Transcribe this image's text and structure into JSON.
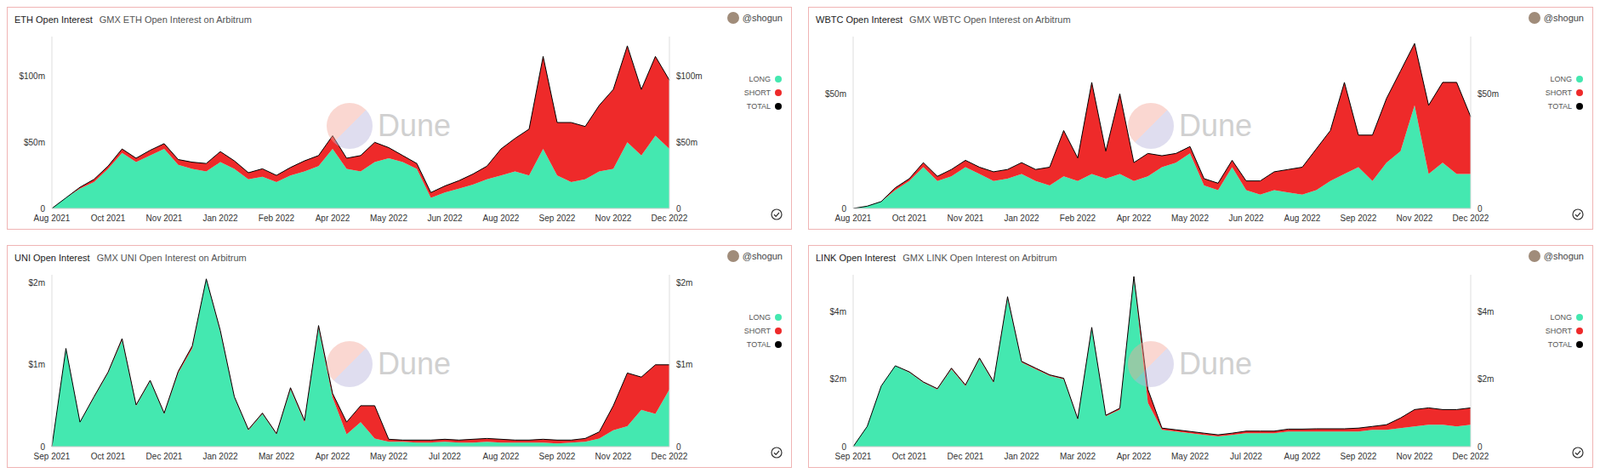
{
  "chart_data": [
    {
      "type": "area",
      "title": "ETH Open Interest",
      "subtitle": "GMX ETH Open Interest on Arbitrum",
      "author": "@shogun",
      "watermark": "Dune",
      "stacked": true,
      "grid": false,
      "legend": "right",
      "categories": [
        "Aug 2021",
        null,
        null,
        null,
        "Oct 2021",
        null,
        null,
        null,
        "Nov 2021",
        null,
        null,
        null,
        "Jan 2022",
        null,
        null,
        null,
        "Feb 2022",
        null,
        null,
        null,
        "Apr 2022",
        null,
        null,
        null,
        "May 2022",
        null,
        null,
        null,
        "Jun 2022",
        null,
        null,
        null,
        "Aug 2022",
        null,
        null,
        null,
        "Sep 2022",
        null,
        null,
        null,
        "Nov 2022",
        null,
        null,
        null,
        "Dec 2022"
      ],
      "series": [
        {
          "name": "LONG",
          "color": "#44e8b0",
          "values": [
            0,
            8000000,
            15000000,
            20000000,
            30000000,
            42000000,
            35000000,
            40000000,
            45000000,
            33000000,
            30000000,
            28000000,
            35000000,
            30000000,
            22000000,
            24000000,
            20000000,
            25000000,
            28000000,
            32000000,
            45000000,
            30000000,
            28000000,
            35000000,
            38000000,
            35000000,
            30000000,
            8000000,
            12000000,
            15000000,
            18000000,
            22000000,
            25000000,
            28000000,
            25000000,
            45000000,
            25000000,
            20000000,
            22000000,
            28000000,
            30000000,
            50000000,
            40000000,
            55000000,
            45000000
          ]
        },
        {
          "name": "SHORT",
          "color": "#ee2a2a",
          "values": [
            0,
            0,
            1000000,
            2000000,
            2000000,
            3000000,
            3000000,
            4000000,
            4000000,
            4000000,
            5000000,
            6000000,
            8000000,
            6000000,
            5000000,
            6000000,
            5000000,
            6000000,
            8000000,
            8000000,
            10000000,
            8000000,
            12000000,
            15000000,
            8000000,
            5000000,
            4000000,
            4000000,
            5000000,
            6000000,
            8000000,
            10000000,
            20000000,
            25000000,
            35000000,
            70000000,
            40000000,
            45000000,
            40000000,
            50000000,
            60000000,
            73000000,
            50000000,
            60000000,
            52000000
          ]
        },
        {
          "name": "TOTAL",
          "color": "#000000",
          "type": "line",
          "values": [
            0,
            8000000,
            16000000,
            22000000,
            32000000,
            45000000,
            38000000,
            44000000,
            49000000,
            37000000,
            35000000,
            34000000,
            43000000,
            36000000,
            27000000,
            30000000,
            25000000,
            31000000,
            36000000,
            40000000,
            55000000,
            38000000,
            40000000,
            50000000,
            46000000,
            40000000,
            34000000,
            12000000,
            17000000,
            21000000,
            26000000,
            32000000,
            45000000,
            53000000,
            60000000,
            115000000,
            65000000,
            65000000,
            62000000,
            78000000,
            90000000,
            123000000,
            90000000,
            115000000,
            97000000
          ]
        }
      ],
      "ylim": [
        0,
        130000000
      ],
      "yticks": [
        0,
        {
          "value": 50000000,
          "label": "$50m"
        },
        {
          "value": 100000000,
          "label": "$100m"
        }
      ],
      "y2lim": [
        0,
        130000000
      ],
      "y2ticks": [
        0,
        {
          "value": 50000000,
          "label": "$50m"
        },
        {
          "value": 100000000,
          "label": "$100m"
        }
      ]
    },
    {
      "type": "area",
      "title": "WBTC Open Interest",
      "subtitle": "GMX WBTC Open Interest on Arbitrum",
      "author": "@shogun",
      "watermark": "Dune",
      "stacked": true,
      "grid": false,
      "legend": "right",
      "categories": [
        "Aug 2021",
        null,
        null,
        null,
        "Oct 2021",
        null,
        null,
        null,
        "Nov 2021",
        null,
        null,
        null,
        "Jan 2022",
        null,
        null,
        null,
        "Feb 2022",
        null,
        null,
        null,
        "Apr 2022",
        null,
        null,
        null,
        "May 2022",
        null,
        null,
        null,
        "Jun 2022",
        null,
        null,
        null,
        "Aug 2022",
        null,
        null,
        null,
        "Sep 2022",
        null,
        null,
        null,
        "Nov 2022",
        null,
        null,
        null,
        "Dec 2022"
      ],
      "series": [
        {
          "name": "LONG",
          "color": "#44e8b0",
          "values": [
            0,
            1000000,
            3000000,
            8000000,
            12000000,
            18000000,
            12000000,
            14000000,
            18000000,
            15000000,
            12000000,
            13000000,
            15000000,
            12000000,
            10000000,
            14000000,
            12000000,
            15000000,
            13000000,
            15000000,
            12000000,
            14000000,
            18000000,
            20000000,
            24000000,
            10000000,
            8000000,
            18000000,
            8000000,
            6000000,
            8000000,
            7000000,
            6000000,
            8000000,
            12000000,
            15000000,
            18000000,
            12000000,
            20000000,
            25000000,
            45000000,
            15000000,
            20000000,
            15000000,
            15000000
          ]
        },
        {
          "name": "SHORT",
          "color": "#ee2a2a",
          "values": [
            0,
            0,
            0,
            1000000,
            1000000,
            2000000,
            2000000,
            3000000,
            3000000,
            3000000,
            4000000,
            4000000,
            5000000,
            5000000,
            8000000,
            20000000,
            10000000,
            40000000,
            12000000,
            35000000,
            8000000,
            10000000,
            5000000,
            4000000,
            3000000,
            3000000,
            3000000,
            3000000,
            4000000,
            6000000,
            8000000,
            10000000,
            12000000,
            18000000,
            22000000,
            40000000,
            14000000,
            20000000,
            28000000,
            35000000,
            27000000,
            30000000,
            35000000,
            40000000,
            25000000
          ]
        },
        {
          "name": "TOTAL",
          "color": "#000000",
          "type": "line",
          "values": [
            0,
            1000000,
            3000000,
            9000000,
            13000000,
            20000000,
            14000000,
            17000000,
            21000000,
            18000000,
            16000000,
            17000000,
            20000000,
            17000000,
            18000000,
            34000000,
            22000000,
            55000000,
            25000000,
            50000000,
            20000000,
            24000000,
            23000000,
            24000000,
            27000000,
            13000000,
            11000000,
            21000000,
            12000000,
            12000000,
            16000000,
            17000000,
            18000000,
            26000000,
            34000000,
            55000000,
            32000000,
            32000000,
            48000000,
            60000000,
            72000000,
            45000000,
            55000000,
            55000000,
            40000000
          ]
        }
      ],
      "ylim": [
        0,
        75000000
      ],
      "yticks": [
        0,
        {
          "value": 50000000,
          "label": "$50m"
        }
      ],
      "y2lim": [
        0,
        75000000
      ],
      "y2ticks": [
        0,
        {
          "value": 50000000,
          "label": "$50m"
        }
      ]
    },
    {
      "type": "area",
      "title": "UNI Open Interest",
      "subtitle": "GMX UNI Open Interest on Arbitrum",
      "author": "@shogun",
      "watermark": "Dune",
      "stacked": true,
      "grid": false,
      "legend": "right",
      "categories": [
        "Sep 2021",
        null,
        null,
        null,
        "Oct 2021",
        null,
        null,
        null,
        "Dec 2021",
        null,
        null,
        null,
        "Jan 2022",
        null,
        null,
        null,
        "Mar 2022",
        null,
        null,
        null,
        "Apr 2022",
        null,
        null,
        null,
        "May 2022",
        null,
        null,
        null,
        "Jul 2022",
        null,
        null,
        null,
        "Aug 2022",
        null,
        null,
        null,
        "Sep 2022",
        null,
        null,
        null,
        "Nov 2022",
        null,
        null,
        null,
        "Dec 2022"
      ],
      "series": [
        {
          "name": "LONG",
          "color": "#44e8b0",
          "values": [
            0,
            1200000,
            300000,
            600000,
            900000,
            1300000,
            500000,
            800000,
            400000,
            900000,
            1200000,
            2050000,
            1400000,
            600000,
            200000,
            400000,
            150000,
            700000,
            300000,
            1450000,
            600000,
            150000,
            300000,
            100000,
            60000,
            60000,
            50000,
            50000,
            60000,
            50000,
            50000,
            60000,
            50000,
            50000,
            50000,
            50000,
            40000,
            50000,
            60000,
            100000,
            200000,
            250000,
            450000,
            400000,
            700000
          ]
        },
        {
          "name": "SHORT",
          "color": "#ee2a2a",
          "values": [
            0,
            0,
            0,
            10000,
            10000,
            20000,
            10000,
            10000,
            10000,
            20000,
            30000,
            0,
            20000,
            10000,
            10000,
            10000,
            10000,
            20000,
            20000,
            30000,
            50000,
            150000,
            200000,
            400000,
            30000,
            20000,
            30000,
            30000,
            30000,
            30000,
            40000,
            40000,
            40000,
            30000,
            30000,
            40000,
            40000,
            30000,
            40000,
            80000,
            300000,
            650000,
            400000,
            600000,
            300000
          ]
        },
        {
          "name": "TOTAL",
          "color": "#000000",
          "type": "line",
          "values": [
            0,
            1200000,
            300000,
            610000,
            910000,
            1320000,
            510000,
            810000,
            410000,
            920000,
            1230000,
            2050000,
            1420000,
            610000,
            210000,
            410000,
            160000,
            720000,
            320000,
            1480000,
            650000,
            300000,
            500000,
            500000,
            90000,
            80000,
            80000,
            80000,
            90000,
            80000,
            90000,
            100000,
            90000,
            80000,
            80000,
            90000,
            80000,
            80000,
            100000,
            180000,
            500000,
            900000,
            850000,
            1000000,
            1000000
          ]
        }
      ],
      "ylim": [
        0,
        2100000
      ],
      "yticks": [
        0,
        {
          "value": 1000000,
          "label": "$1m"
        },
        {
          "value": 2000000,
          "label": "$2m"
        }
      ],
      "y2lim": [
        0,
        2100000
      ],
      "y2ticks": [
        0,
        {
          "value": 1000000,
          "label": "$1m"
        },
        {
          "value": 2000000,
          "label": "$2m"
        }
      ]
    },
    {
      "type": "area",
      "title": "LINK Open Interest",
      "subtitle": "GMX LINK Open Interest on Arbitrum",
      "author": "@shogun",
      "watermark": "Dune",
      "stacked": true,
      "grid": false,
      "legend": "right",
      "categories": [
        "Sep 2021",
        null,
        null,
        null,
        "Oct 2021",
        null,
        null,
        null,
        "Dec 2021",
        null,
        null,
        null,
        "Jan 2022",
        null,
        null,
        null,
        "Mar 2022",
        null,
        null,
        null,
        "Apr 2022",
        null,
        null,
        null,
        "May 2022",
        null,
        null,
        null,
        "Jul 2022",
        null,
        null,
        null,
        "Aug 2022",
        null,
        null,
        null,
        "Sep 2022",
        null,
        null,
        null,
        "Nov 2022",
        null,
        null,
        null,
        "Dec 2022"
      ],
      "series": [
        {
          "name": "LONG",
          "color": "#44e8b0",
          "values": [
            0,
            600000,
            1800000,
            2400000,
            2200000,
            1900000,
            1700000,
            2300000,
            1800000,
            2600000,
            1900000,
            4400000,
            2500000,
            2300000,
            2100000,
            2000000,
            800000,
            3500000,
            900000,
            1100000,
            5000000,
            1300000,
            500000,
            450000,
            400000,
            350000,
            300000,
            350000,
            400000,
            400000,
            400000,
            450000,
            450000,
            450000,
            450000,
            450000,
            450000,
            500000,
            500000,
            550000,
            600000,
            650000,
            650000,
            600000,
            650000
          ]
        },
        {
          "name": "SHORT",
          "color": "#ee2a2a",
          "values": [
            0,
            0,
            0,
            0,
            20000,
            20000,
            20000,
            30000,
            30000,
            30000,
            30000,
            50000,
            30000,
            30000,
            30000,
            30000,
            30000,
            40000,
            30000,
            40000,
            50000,
            400000,
            50000,
            50000,
            50000,
            50000,
            50000,
            50000,
            60000,
            60000,
            60000,
            70000,
            70000,
            80000,
            80000,
            80000,
            100000,
            100000,
            150000,
            300000,
            500000,
            500000,
            450000,
            500000,
            500000
          ]
        },
        {
          "name": "TOTAL",
          "color": "#000000",
          "type": "line",
          "values": [
            0,
            600000,
            1800000,
            2400000,
            2220000,
            1920000,
            1720000,
            2330000,
            1830000,
            2630000,
            1930000,
            4450000,
            2530000,
            2330000,
            2130000,
            2030000,
            830000,
            3540000,
            930000,
            1140000,
            5050000,
            1700000,
            550000,
            500000,
            450000,
            400000,
            350000,
            400000,
            460000,
            460000,
            460000,
            520000,
            520000,
            530000,
            530000,
            530000,
            550000,
            600000,
            650000,
            850000,
            1100000,
            1150000,
            1100000,
            1100000,
            1150000
          ]
        }
      ],
      "ylim": [
        0,
        5100000
      ],
      "yticks": [
        0,
        {
          "value": 2000000,
          "label": "$2m"
        },
        {
          "value": 4000000,
          "label": "$4m"
        }
      ],
      "y2lim": [
        0,
        5100000
      ],
      "y2ticks": [
        0,
        {
          "value": 2000000,
          "label": "$2m"
        },
        {
          "value": 4000000,
          "label": "$4m"
        }
      ]
    }
  ]
}
